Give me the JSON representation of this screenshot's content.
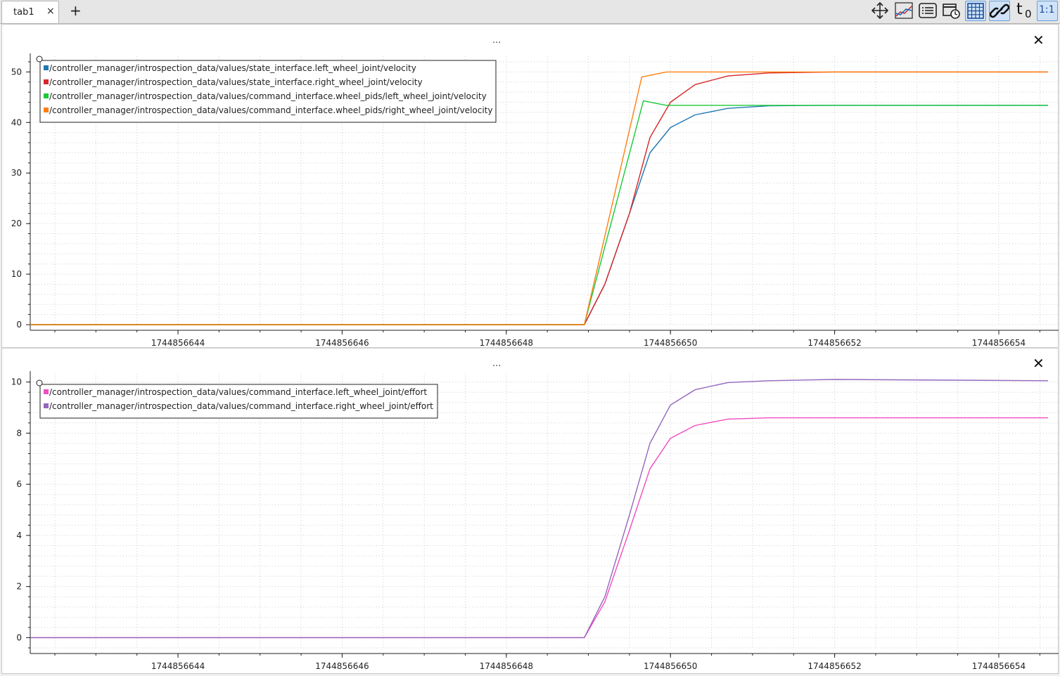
{
  "tabs": [
    {
      "label": "tab1",
      "close": "×"
    }
  ],
  "add_tab": "+",
  "toolbar": {
    "icons": [
      "move-icon",
      "split-plot-icon",
      "list-icon",
      "calendar-clock-icon",
      "grid-icon",
      "link-icon",
      "t0-icon",
      "one-to-one-icon"
    ],
    "t0_label": "t",
    "t0_sub": "0",
    "ratio_label": "1:1"
  },
  "panels": [
    {
      "title": "...",
      "close": "✕"
    },
    {
      "title": "...",
      "close": "✕"
    }
  ],
  "chart_data": [
    {
      "type": "line",
      "title": "...",
      "ylim": [
        0,
        52
      ],
      "xlim": [
        1744856642.2,
        1744856654.6
      ],
      "yticks": [
        0,
        10,
        20,
        30,
        40,
        50
      ],
      "ytick_labels": [
        "0",
        "10",
        "20",
        "30",
        "40",
        "50"
      ],
      "xticks": [
        1744856644,
        1744856646,
        1744856648,
        1744856650,
        1744856652,
        1744856654
      ],
      "xtick_labels": [
        "1744856644",
        "1744856646",
        "1744856648",
        "1744856650",
        "1744856652",
        "1744856654"
      ],
      "grid": true,
      "legend_position": "top-left",
      "series": [
        {
          "name": "/controller_manager/introspection_data/values/state_interface.left_wheel_joint/velocity",
          "color": "#1f77b4",
          "x": [
            1744856642.2,
            1744856648.95,
            1744856649.2,
            1744856649.5,
            1744856649.75,
            1744856650.0,
            1744856650.3,
            1744856650.7,
            1744856651.2,
            1744856652.0,
            1744856654.6
          ],
          "y": [
            0,
            0,
            8,
            22,
            34,
            39,
            41.5,
            42.8,
            43.3,
            43.4,
            43.4
          ]
        },
        {
          "name": "/controller_manager/introspection_data/values/state_interface.right_wheel_joint/velocity",
          "color": "#d62728",
          "x": [
            1744856642.2,
            1744856648.95,
            1744856649.2,
            1744856649.5,
            1744856649.75,
            1744856650.0,
            1744856650.3,
            1744856650.7,
            1744856651.2,
            1744856652.0,
            1744856654.6
          ],
          "y": [
            0,
            0,
            8,
            22,
            37,
            44,
            47.5,
            49.2,
            49.8,
            50,
            50
          ]
        },
        {
          "name": "/controller_manager/introspection_data/values/command_interface.wheel_pids/left_wheel_joint/velocity",
          "color": "#1ac938",
          "x": [
            1744856642.2,
            1744856648.95,
            1744856649.67,
            1744856649.95,
            1744856654.6
          ],
          "y": [
            0,
            0,
            44.3,
            43.4,
            43.4
          ]
        },
        {
          "name": "/controller_manager/introspection_data/values/command_interface.wheel_pids/right_wheel_joint/velocity",
          "color": "#ff7f0e",
          "x": [
            1744856642.2,
            1744856648.95,
            1744856649.65,
            1744856649.95,
            1744856654.6
          ],
          "y": [
            0,
            0,
            49,
            50,
            50
          ]
        }
      ]
    },
    {
      "type": "line",
      "title": "...",
      "ylim": [
        -0.4,
        10.1
      ],
      "xlim": [
        1744856642.2,
        1744856654.6
      ],
      "yticks": [
        0,
        2,
        4,
        6,
        8,
        10
      ],
      "ytick_labels": [
        "0",
        "2",
        "4",
        "6",
        "8",
        "10"
      ],
      "xticks": [
        1744856644,
        1744856646,
        1744856648,
        1744856650,
        1744856652,
        1744856654
      ],
      "xtick_labels": [
        "1744856644",
        "1744856646",
        "1744856648",
        "1744856650",
        "1744856652",
        "1744856654"
      ],
      "grid": true,
      "legend_position": "top-left",
      "series": [
        {
          "name": "/controller_manager/introspection_data/values/command_interface.left_wheel_joint/effort",
          "color": "#f14cc1",
          "x": [
            1744856642.2,
            1744856648.95,
            1744856649.2,
            1744856649.5,
            1744856649.75,
            1744856650.0,
            1744856650.3,
            1744856650.7,
            1744856651.2,
            1744856652.0,
            1744856654.6
          ],
          "y": [
            0,
            0,
            1.4,
            4.2,
            6.6,
            7.8,
            8.3,
            8.55,
            8.6,
            8.6,
            8.6
          ]
        },
        {
          "name": "/controller_manager/introspection_data/values/command_interface.right_wheel_joint/effort",
          "color": "#9467bd",
          "x": [
            1744856642.2,
            1744856648.95,
            1744856649.2,
            1744856649.5,
            1744856649.75,
            1744856650.0,
            1744856650.3,
            1744856650.7,
            1744856651.2,
            1744856652.0,
            1744856654.6
          ],
          "y": [
            0,
            0,
            1.6,
            4.8,
            7.6,
            9.1,
            9.7,
            9.98,
            10.05,
            10.1,
            10.05
          ]
        }
      ]
    }
  ]
}
